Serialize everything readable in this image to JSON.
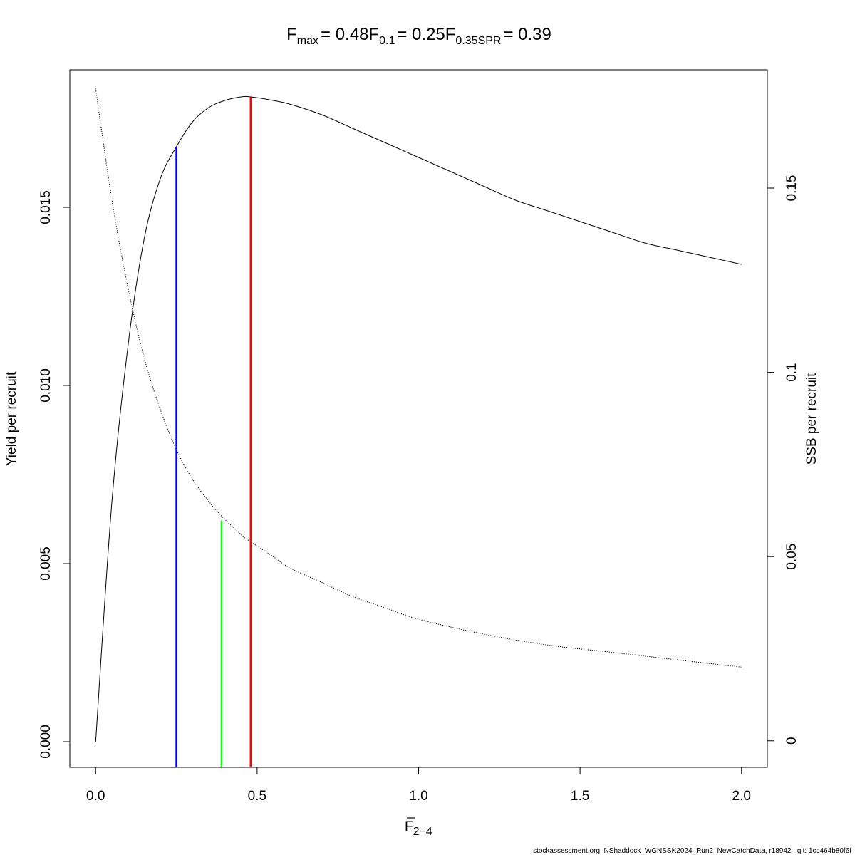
{
  "chart_data": {
    "type": "line",
    "title": {
      "fmax_label": "F",
      "fmax_sub": "max",
      "fmax_value": "= 0.48",
      "f01_label": "F",
      "f01_sub": "0.1",
      "f01_value": "= 0.25",
      "fspr_label": "F",
      "fspr_sub": "0.35SPR",
      "fspr_value": "= 0.39"
    },
    "xlabel": "F",
    "xlabel_sub": "2−4",
    "ylabel": "Yield per recruit",
    "y2label": "SSB per recruit",
    "xlim": [
      -0.08,
      2.08
    ],
    "ylim": [
      -0.00072,
      0.01886
    ],
    "y2lim": [
      -0.0072,
      0.1821
    ],
    "x_ticks": [
      "0.0",
      "0.5",
      "1.0",
      "1.5",
      "2.0"
    ],
    "x_tick_values": [
      0,
      0.5,
      1.0,
      1.5,
      2.0
    ],
    "y_ticks": [
      "0.000",
      "0.005",
      "0.010",
      "0.015"
    ],
    "y_tick_values": [
      0,
      0.005,
      0.01,
      0.015
    ],
    "y2_ticks": [
      "0",
      "0.05",
      "0.1",
      "0.15"
    ],
    "y2_tick_values": [
      0,
      0.05,
      0.1,
      0.15
    ],
    "series": [
      {
        "axis": "left",
        "style": "solid",
        "x": [
          0,
          0.05,
          0.1,
          0.15,
          0.2,
          0.25,
          0.3,
          0.35,
          0.4,
          0.45,
          0.48,
          0.55,
          0.6,
          0.7,
          0.8,
          0.9,
          1.0,
          1.1,
          1.2,
          1.3,
          1.4,
          1.5,
          1.6,
          1.7,
          1.8,
          1.9,
          2.0
        ],
        "y": [
          0,
          0.0067,
          0.0111,
          0.0141,
          0.0158,
          0.0167,
          0.0174,
          0.0178,
          0.018,
          0.0181,
          0.0181,
          0.018,
          0.0179,
          0.0176,
          0.0172,
          0.0168,
          0.0164,
          0.016,
          0.0156,
          0.0152,
          0.0149,
          0.0146,
          0.0143,
          0.014,
          0.0138,
          0.0136,
          0.0134
        ]
      },
      {
        "axis": "right",
        "style": "dotted",
        "x": [
          0,
          0.05,
          0.1,
          0.15,
          0.2,
          0.25,
          0.3,
          0.35,
          0.39,
          0.45,
          0.48,
          0.55,
          0.6,
          0.7,
          0.8,
          0.9,
          1.0,
          1.2,
          1.4,
          1.6,
          1.8,
          2.0
        ],
        "y": [
          0.177,
          0.147,
          0.123,
          0.104,
          0.09,
          0.079,
          0.071,
          0.065,
          0.061,
          0.056,
          0.054,
          0.05,
          0.047,
          0.043,
          0.039,
          0.036,
          0.033,
          0.029,
          0.026,
          0.024,
          0.022,
          0.02
        ]
      }
    ],
    "reference_lines": [
      {
        "name": "F0.1",
        "x": 0.25,
        "y": 0.0167,
        "color": "#0000ff"
      },
      {
        "name": "F0.35SPR",
        "x": 0.39,
        "y": 0.0062,
        "color": "#00ff00"
      },
      {
        "name": "Fmax",
        "x": 0.48,
        "y": 0.0181,
        "color": "#ff0000"
      }
    ]
  },
  "footer": "stockassessment.org, NShaddock_WGNSSK2024_Run2_NewCatchData, r18942 , git: 1cc464b80f6f"
}
